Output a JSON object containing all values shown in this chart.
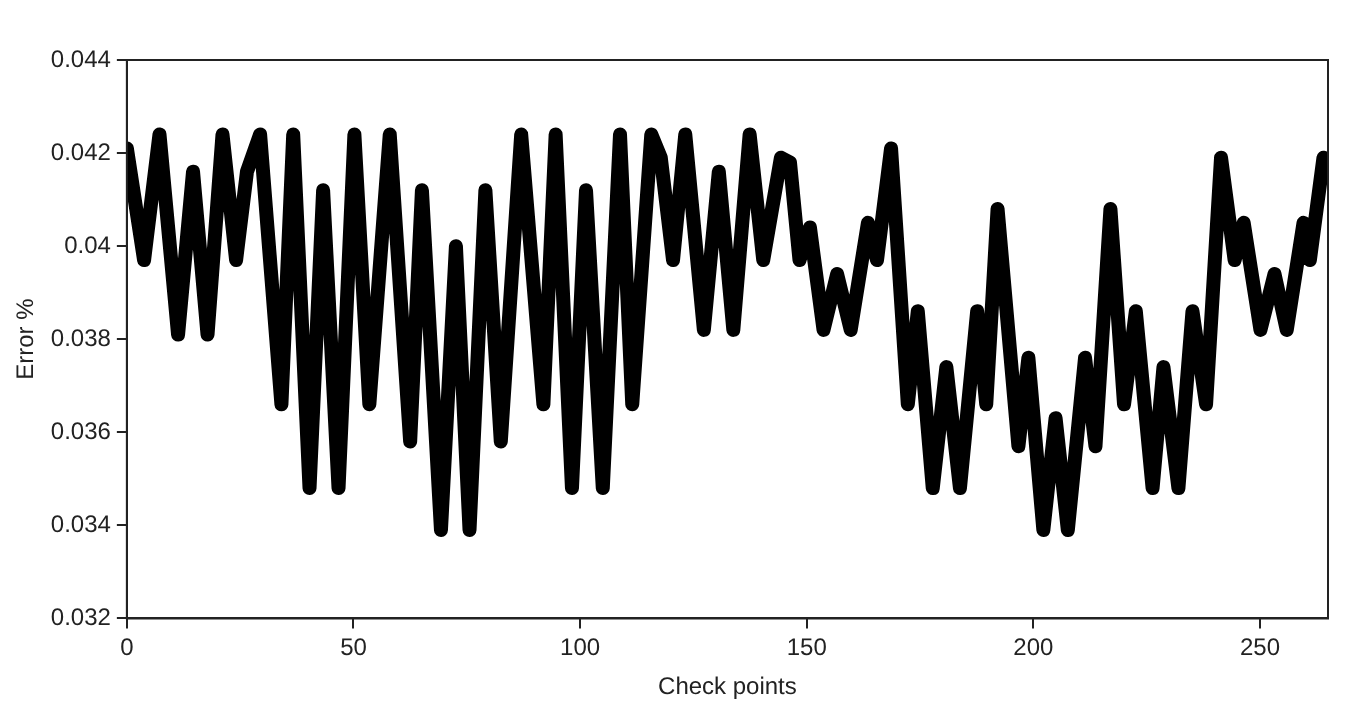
{
  "chart_data": {
    "type": "line",
    "xlabel": "Check points",
    "ylabel": "Error %",
    "xlim": [
      0,
      265
    ],
    "xticks": [
      0,
      50,
      100,
      150,
      200,
      250
    ],
    "ylim": [
      0.032,
      0.044
    ],
    "yticks": [
      0.032,
      0.034,
      0.036,
      0.038,
      0.04,
      0.042,
      0.044
    ],
    "grid": false,
    "legend": false,
    "marker": "none",
    "line_style": "solid",
    "series": [
      {
        "color": "#000000",
        "x": [
          0,
          3.8,
          7.2,
          11.3,
          14.6,
          17.8,
          21.1,
          24.1,
          26.5,
          29.4,
          34.1,
          36.7,
          40.3,
          43.3,
          46.7,
          50.2,
          53.5,
          58,
          62.5,
          65.1,
          69.3,
          72.6,
          75.6,
          79.1,
          82.5,
          87,
          91.9,
          94.6,
          98.2,
          101.3,
          105,
          108.8,
          111.5,
          115.7,
          117.8,
          120.5,
          123.2,
          127.3,
          130.6,
          133.8,
          137.4,
          140.4,
          144.3,
          146.3,
          148.4,
          150.7,
          153.7,
          156.7,
          159.7,
          163.5,
          165.5,
          168.6,
          172.3,
          174.5,
          177.8,
          180.8,
          183.8,
          187.6,
          189.6,
          192.1,
          196.7,
          198.9,
          202.2,
          204.9,
          207.6,
          211.4,
          213.7,
          217,
          220,
          222.6,
          226.3,
          228.7,
          232,
          235.1,
          238.1,
          241.4,
          244.4,
          246.4,
          250.1,
          253.2,
          255.9,
          259.6,
          261,
          264
        ],
        "values": [
          0.0421,
          0.0397,
          0.0424,
          0.0381,
          0.0416,
          0.0381,
          0.0424,
          0.0397,
          0.0416,
          0.0424,
          0.0366,
          0.0424,
          0.0348,
          0.0412,
          0.0348,
          0.0424,
          0.0366,
          0.0424,
          0.0358,
          0.0412,
          0.0339,
          0.04,
          0.0339,
          0.0412,
          0.0358,
          0.0424,
          0.0366,
          0.0424,
          0.0348,
          0.0412,
          0.0348,
          0.0424,
          0.0366,
          0.0424,
          0.0419,
          0.0397,
          0.0424,
          0.0382,
          0.0416,
          0.0382,
          0.0424,
          0.0397,
          0.0419,
          0.0418,
          0.0397,
          0.0404,
          0.0382,
          0.0394,
          0.0382,
          0.0405,
          0.0397,
          0.0421,
          0.0366,
          0.0386,
          0.0348,
          0.0374,
          0.0348,
          0.0386,
          0.0366,
          0.0408,
          0.0357,
          0.0376,
          0.0339,
          0.0363,
          0.0339,
          0.0376,
          0.0357,
          0.0408,
          0.0366,
          0.0386,
          0.0348,
          0.0374,
          0.0348,
          0.0386,
          0.0366,
          0.0419,
          0.0397,
          0.0405,
          0.0382,
          0.0394,
          0.0382,
          0.0405,
          0.0397,
          0.0419
        ]
      }
    ]
  }
}
